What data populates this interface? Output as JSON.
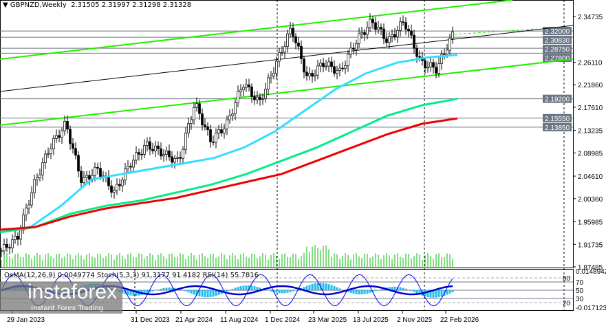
{
  "header": {
    "symbol": "GBPNZD,Weekly",
    "ohlc": "2.31505 2.31997 2.31298 2.31328"
  },
  "indicator_label": "OsMA(12,26,9) 0.0049774  Stoch(5,3,3) 91.3177 91.4182  RSI(14) 55.7816",
  "logo": {
    "brand": "instaforex",
    "tagline": "Instant Forex Trading"
  },
  "chart_data": {
    "type": "candlestick",
    "price_ticks": [
      "2.34735",
      "2.26110",
      "2.21860",
      "2.17610",
      "2.13235",
      "2.08985",
      "2.04610",
      "2.00360",
      "1.95985",
      "1.91735",
      "1.87485"
    ],
    "ylim": [
      1.87485,
      2.34735
    ],
    "levels": [
      {
        "value": "2.32000"
      },
      {
        "value": "2.30830"
      },
      {
        "value": "2.28750"
      },
      {
        "value": "2.27800"
      },
      {
        "value": "2.19200"
      },
      {
        "value": "2.15550"
      },
      {
        "value": "2.13850"
      }
    ],
    "date_labels": [
      "29 Jan 2023",
      "31 Dec 2023",
      "21 Apr 2024",
      "11 Aug 2024",
      "1 Dec 2024",
      "23 Mar 2025",
      "13 Jul 2025",
      "2 Nov 2025",
      "22 Feb 2026"
    ],
    "anchor_closes": [
      1.905,
      1.93,
      2.028,
      2.1,
      2.145,
      2.035,
      2.06,
      2.015,
      2.07,
      2.105,
      2.09,
      2.073,
      2.184,
      2.112,
      2.145,
      2.222,
      2.184,
      2.255,
      2.326,
      2.229,
      2.26,
      2.242,
      2.3,
      2.339,
      2.3,
      2.339,
      2.261,
      2.248,
      2.313
    ],
    "ma_series": [
      {
        "color": "#33ddff",
        "values": [
          1.94,
          1.95,
          1.99,
          2.04,
          2.05,
          2.06,
          2.07,
          2.08,
          2.1,
          2.13,
          2.17,
          2.21,
          2.24,
          2.26,
          2.27,
          2.275
        ]
      },
      {
        "color": "#00ee88",
        "values": [
          1.94,
          1.95,
          1.975,
          1.99,
          2.0,
          2.015,
          2.03,
          2.05,
          2.075,
          2.1,
          2.13,
          2.16,
          2.18,
          2.192
        ]
      },
      {
        "color": "#ee0000",
        "values": [
          1.945,
          1.95,
          1.97,
          1.985,
          1.995,
          2.005,
          2.02,
          2.035,
          2.05,
          2.075,
          2.1,
          2.125,
          2.145,
          2.155
        ]
      }
    ],
    "indicator_ticks": [
      "0.0148942",
      "80",
      "70",
      "50",
      "30",
      "20",
      "-0.0171238"
    ],
    "colors": {
      "channel": "#22ee00",
      "level": "#6b7684",
      "candle": "#000000"
    }
  }
}
